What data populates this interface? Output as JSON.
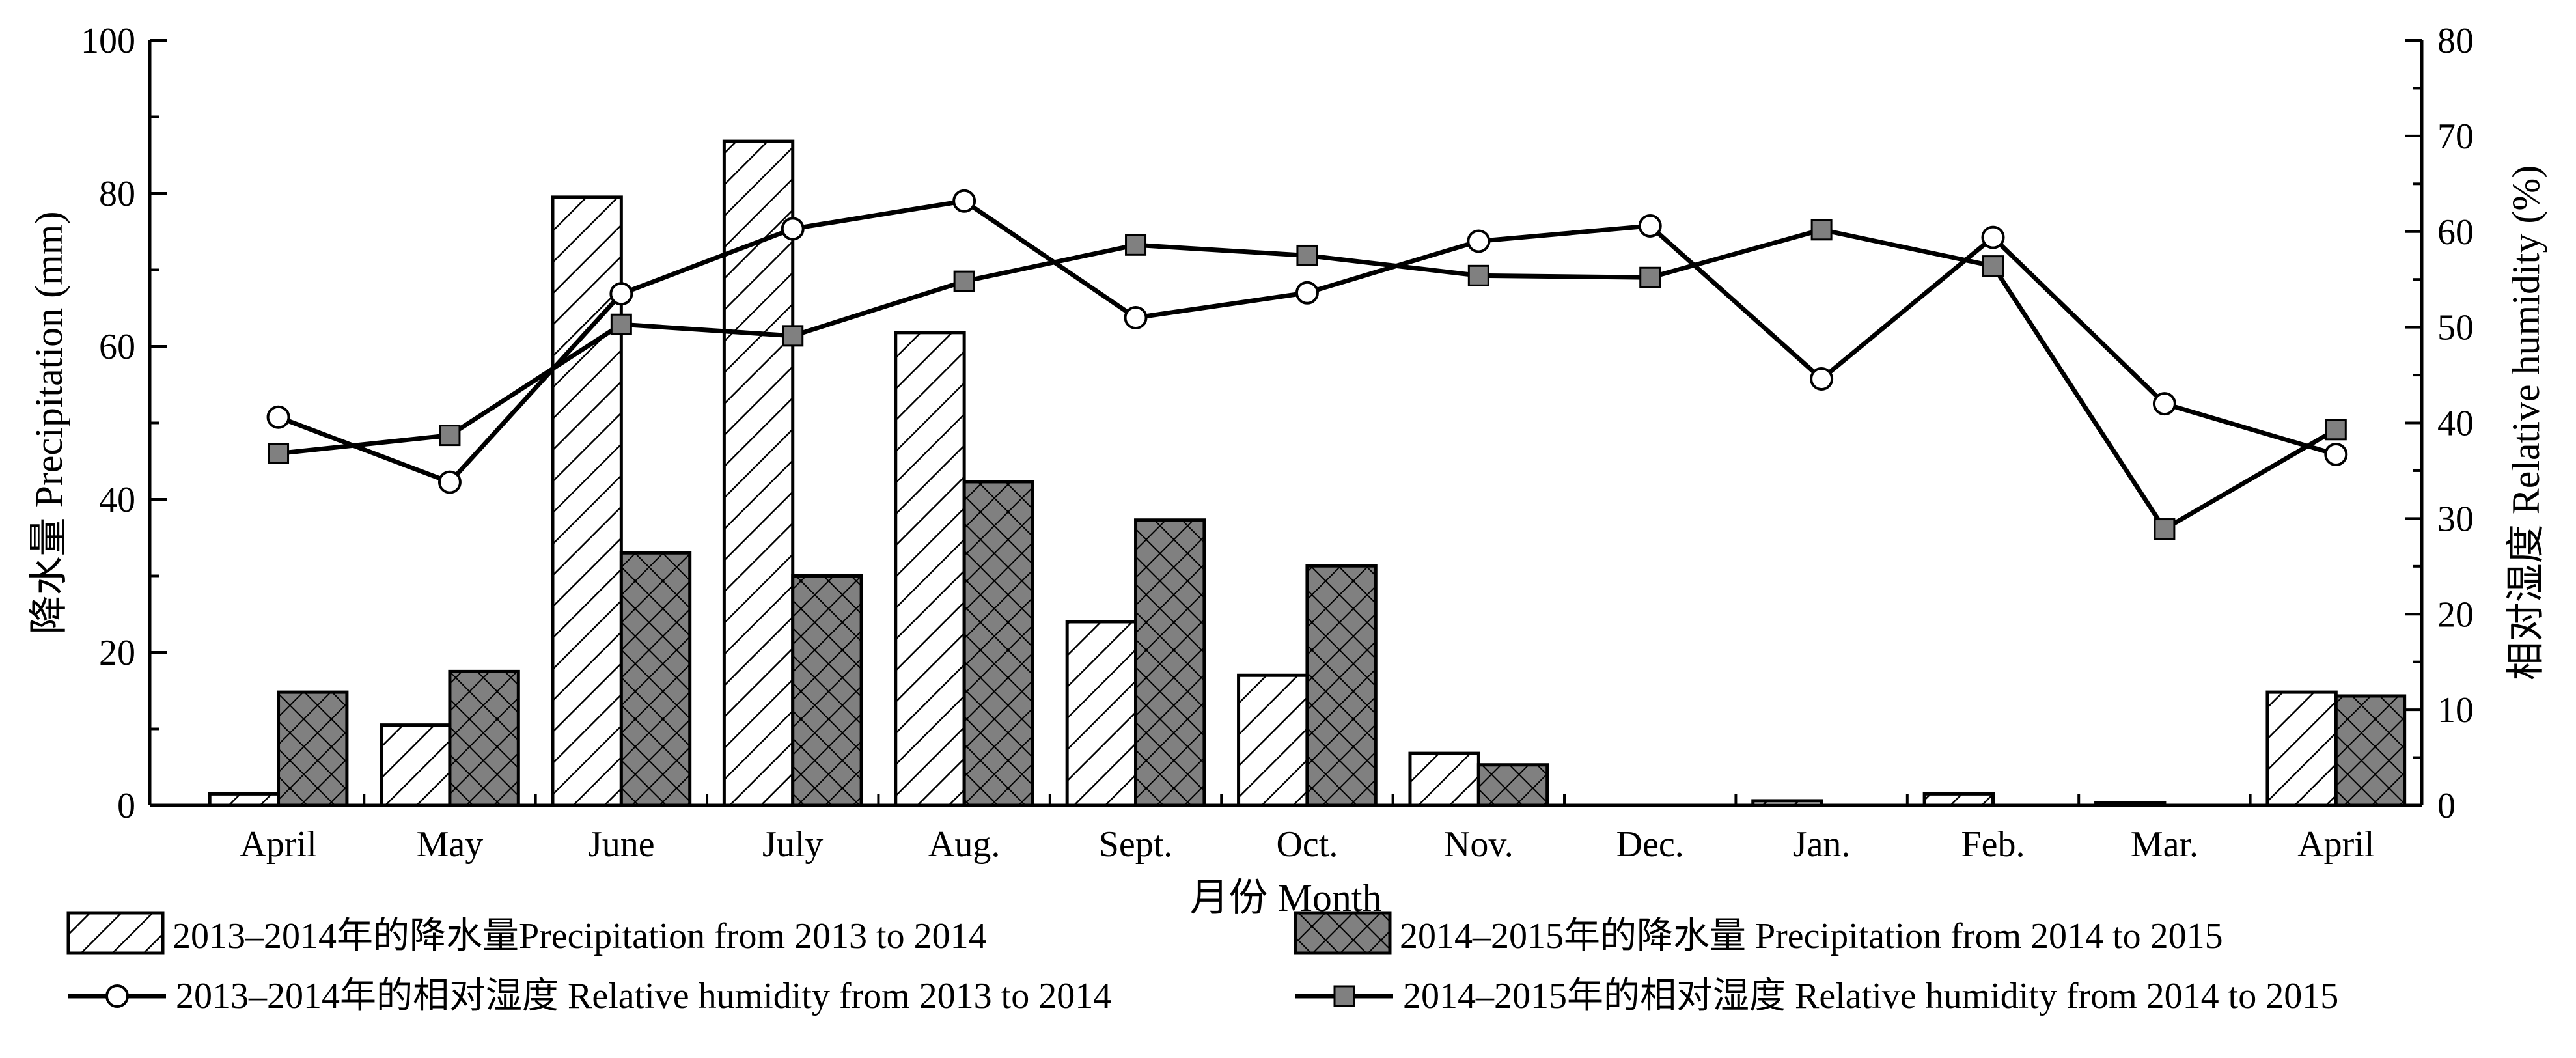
{
  "chart_data": {
    "type": "bar+line",
    "xlabel": "月份 Month",
    "ylabel_left": "降水量 Precipitation (mm)",
    "ylabel_right": "相对湿度 Relative humidity (%)",
    "ylim_left": [
      0,
      100
    ],
    "ylim_right": [
      0,
      80
    ],
    "yticks_left": [
      0,
      20,
      40,
      60,
      80,
      100
    ],
    "yticks_right": [
      0,
      10,
      20,
      30,
      40,
      50,
      60,
      70,
      80
    ],
    "grid": false,
    "legend_placement": "bottom",
    "categories": [
      "April",
      "May",
      "June",
      "July",
      "Aug.",
      "Sept.",
      "Oct.",
      "Nov.",
      "Dec.",
      "Jan.",
      "Feb.",
      "Mar.",
      "April"
    ],
    "bar_series": [
      {
        "name": "2013–2014年的降水量Precipitation from 2013 to 2014",
        "pattern": "hatch",
        "values": [
          1.5,
          10.5,
          79.5,
          86.8,
          61.8,
          24,
          17,
          6.8,
          0,
          0.6,
          1.5,
          0.3,
          14.8
        ]
      },
      {
        "name": "2014–2015年的降水量 Precipitation from 2014 to 2015",
        "pattern": "crosshatch",
        "color": "#808080",
        "values": [
          14.8,
          17.5,
          33,
          30,
          42.3,
          37.3,
          31.3,
          5.3,
          0,
          0,
          0,
          0,
          14.3
        ]
      }
    ],
    "line_series": [
      {
        "name": "2013–2014年的相对湿度 Relative humidity from 2013 to 2014",
        "marker": "circle",
        "axis": "right",
        "values": [
          40.6,
          33.8,
          53.5,
          60.3,
          63.2,
          51,
          53.6,
          59,
          60.6,
          44.6,
          59.4,
          42,
          36.7
        ]
      },
      {
        "name": "2014–2015年的相对湿度 Relative humidity from 2014 to 2015",
        "marker": "square",
        "axis": "right",
        "values": [
          36.8,
          38.7,
          50.3,
          49.1,
          54.8,
          58.6,
          57.5,
          55.4,
          55.2,
          60.2,
          56.4,
          28.9,
          39.3
        ]
      }
    ]
  }
}
